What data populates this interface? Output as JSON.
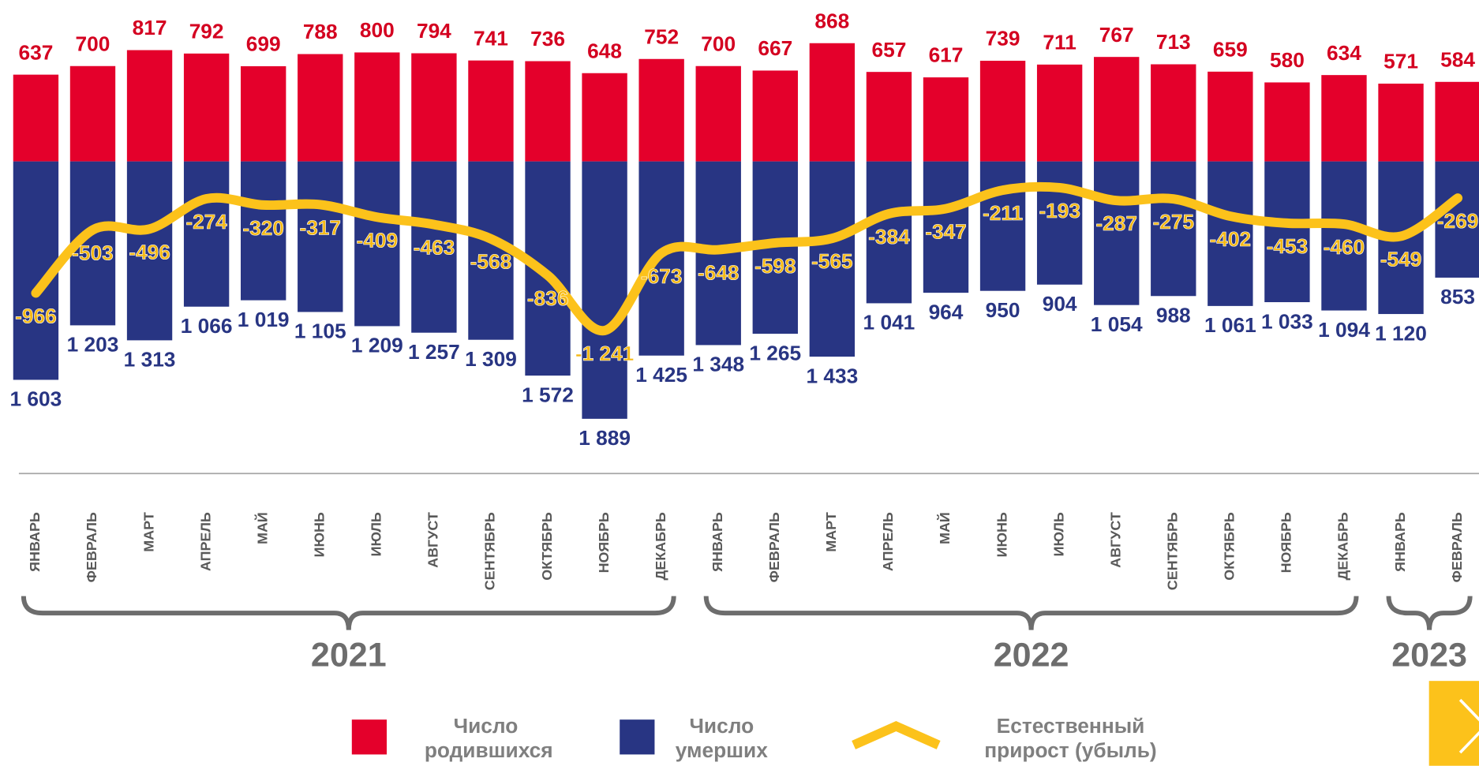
{
  "chart_data": {
    "type": "bar",
    "groups": [
      {
        "label": "2021",
        "categories": [
          "ЯНВАРЬ",
          "ФЕВРАЛЬ",
          "МАРТ",
          "АПРЕЛЬ",
          "МАЙ",
          "ИЮНЬ",
          "ИЮЛЬ",
          "АВГУСТ",
          "СЕНТЯБРЬ",
          "ОКТЯБРЬ",
          "НОЯБРЬ",
          "ДЕКАБРЬ"
        ]
      },
      {
        "label": "2022",
        "categories": [
          "ЯНВАРЬ",
          "ФЕВРАЛЬ",
          "МАРТ",
          "АПРЕЛЬ",
          "МАЙ",
          "ИЮНЬ",
          "ИЮЛЬ",
          "АВГУСТ",
          "СЕНТЯБРЬ",
          "ОКТЯБРЬ",
          "НОЯБРЬ",
          "ДЕКАБРЬ"
        ]
      },
      {
        "label": "2023",
        "categories": [
          "ЯНВАРЬ",
          "ФЕВРАЛЬ"
        ]
      }
    ],
    "series": [
      {
        "name": "Число родившихся",
        "color": "#e4002b",
        "label_color": "#d40020",
        "direction": "up",
        "values": [
          637,
          700,
          817,
          792,
          699,
          788,
          800,
          794,
          741,
          736,
          648,
          752,
          700,
          667,
          868,
          657,
          617,
          739,
          711,
          767,
          713,
          659,
          580,
          634,
          571,
          584
        ]
      },
      {
        "name": "Число умерших",
        "color": "#283583",
        "label_color": "#283583",
        "direction": "down",
        "values": [
          1603,
          1203,
          1313,
          1066,
          1019,
          1105,
          1209,
          1257,
          1309,
          1572,
          1889,
          1425,
          1348,
          1265,
          1433,
          1041,
          964,
          950,
          904,
          1054,
          988,
          1061,
          1033,
          1094,
          1120,
          853
        ],
        "value_labels": [
          "1 603",
          "1 203",
          "1 313",
          "1 066",
          "1 019",
          "1 105",
          "1 209",
          "1 257",
          "1 309",
          "1 572",
          "1 889",
          "1 425",
          "1 348",
          "1 265",
          "1 433",
          "1 041",
          "964",
          "950",
          "904",
          "1 054",
          "988",
          "1 061",
          "1 033",
          "1 094",
          "1 120",
          "853"
        ]
      },
      {
        "name": "Естественный прирост (убыль)",
        "color": "#fcc21b",
        "label_color": "#f5b915",
        "type": "line",
        "values": [
          -966,
          -503,
          -496,
          -274,
          -320,
          -317,
          -409,
          -463,
          -568,
          -836,
          -1241,
          -673,
          -648,
          -598,
          -565,
          -384,
          -347,
          -211,
          -193,
          -287,
          -275,
          -402,
          -453,
          -460,
          -549,
          -269
        ],
        "value_labels": [
          "-966",
          "-503",
          "-496",
          "-274",
          "-320",
          "-317",
          "-409",
          "-463",
          "-568",
          "-836",
          "-1 241",
          "-673",
          "-648",
          "-598",
          "-565",
          "-384",
          "-347",
          "-211",
          "-193",
          "-287",
          "-275",
          "-402",
          "-453",
          "-460",
          "-549",
          "-269"
        ]
      }
    ]
  }
}
